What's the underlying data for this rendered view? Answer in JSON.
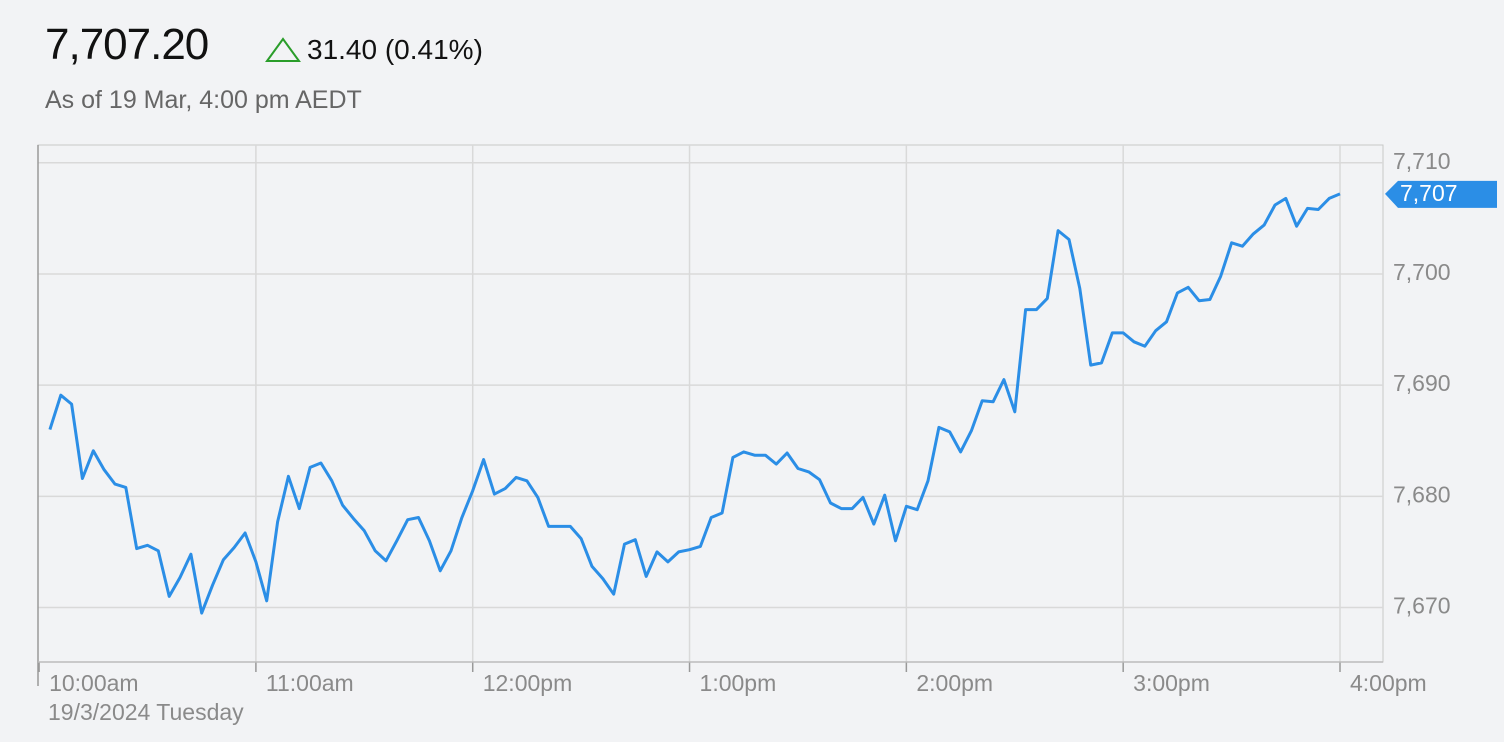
{
  "header": {
    "price": "7,707.20",
    "change": "31.40 (0.41%)",
    "as_of": "As of 19 Mar, 4:00 pm AEDT"
  },
  "chart_data": {
    "type": "line",
    "color": "#2b8ee6",
    "x": [
      603,
      606,
      609,
      612,
      615,
      618,
      621,
      624,
      627,
      630,
      633,
      636,
      639,
      642,
      645,
      648,
      651,
      654,
      657,
      660,
      663,
      666,
      669,
      672,
      675,
      678,
      681,
      684,
      687,
      690,
      693,
      696,
      699,
      702,
      705,
      708,
      711,
      714,
      717,
      720,
      723,
      726,
      729,
      732,
      735,
      738,
      741,
      744,
      747,
      750,
      753,
      756,
      759,
      762,
      765,
      768,
      771,
      774,
      777,
      780,
      783,
      786,
      789,
      792,
      795,
      798,
      801,
      804,
      807,
      810,
      813,
      816,
      819,
      822,
      825,
      828,
      831,
      834,
      837,
      840,
      843,
      846,
      849,
      852,
      855,
      858,
      861,
      864,
      867,
      870,
      873,
      876,
      879,
      882,
      885,
      888,
      891,
      894,
      897,
      900,
      903,
      906,
      909,
      912,
      915,
      918,
      921,
      924,
      927,
      930,
      933,
      936,
      939,
      942,
      945,
      948,
      951,
      954,
      957,
      960
    ],
    "values": [
      7686.0,
      7689.1,
      7688.3,
      7681.6,
      7684.1,
      7682.4,
      7681.1,
      7680.8,
      7675.3,
      7675.6,
      7675.1,
      7671.0,
      7672.7,
      7674.8,
      7669.5,
      7672.0,
      7674.3,
      7675.4,
      7676.7,
      7674.1,
      7670.6,
      7677.7,
      7681.8,
      7678.9,
      7682.6,
      7683.0,
      7681.4,
      7679.2,
      7678.0,
      7676.9,
      7675.1,
      7674.2,
      7676.0,
      7677.9,
      7678.1,
      7676.0,
      7673.3,
      7675.1,
      7678.1,
      7680.5,
      7683.3,
      7680.2,
      7680.7,
      7681.7,
      7681.4,
      7679.9,
      7677.3,
      7677.3,
      7677.3,
      7676.2,
      7673.7,
      7672.6,
      7671.2,
      7675.7,
      7676.1,
      7672.8,
      7675.0,
      7674.1,
      7675.0,
      7675.2,
      7675.5,
      7678.1,
      7678.5,
      7683.5,
      7684.0,
      7683.7,
      7683.7,
      7682.9,
      7683.9,
      7682.5,
      7682.2,
      7681.5,
      7679.4,
      7678.9,
      7678.9,
      7679.9,
      7677.5,
      7680.1,
      7676.0,
      7679.1,
      7678.8,
      7681.4,
      7686.2,
      7685.8,
      7684.0,
      7685.9,
      7688.6,
      7688.5,
      7690.5,
      7687.6,
      7696.8,
      7696.8,
      7697.8,
      7703.9,
      7703.1,
      7698.7,
      7691.8,
      7692.0,
      7694.7,
      7694.7,
      7693.9,
      7693.5,
      7694.9,
      7695.7,
      7698.3,
      7698.8,
      7697.6,
      7697.7,
      7699.8,
      7702.8,
      7702.5,
      7703.6,
      7704.4,
      7706.2,
      7706.8,
      7704.3,
      7705.9,
      7705.8,
      7706.8,
      7707.2
    ],
    "xlim": [
      599.7,
      971.9
    ],
    "xticks": [
      {
        "value": 600,
        "label": "10:00am"
      },
      {
        "value": 660,
        "label": "11:00am"
      },
      {
        "value": 720,
        "label": "12:00pm"
      },
      {
        "value": 780,
        "label": "1:00pm"
      },
      {
        "value": 840,
        "label": "2:00pm"
      },
      {
        "value": 900,
        "label": "3:00pm"
      },
      {
        "value": 960,
        "label": "4:00pm"
      }
    ],
    "ylim": [
      7665.1,
      7711.6
    ],
    "yticks": [
      {
        "value": 7670,
        "label": "7,670"
      },
      {
        "value": 7680,
        "label": "7,680"
      },
      {
        "value": 7690,
        "label": "7,690"
      },
      {
        "value": 7700,
        "label": "7,700"
      },
      {
        "value": 7710,
        "label": "7,710"
      }
    ],
    "current_tick": {
      "value": 7707.2,
      "label": "7,707"
    },
    "date_label": "19/3/2024 Tuesday",
    "grid": true
  }
}
